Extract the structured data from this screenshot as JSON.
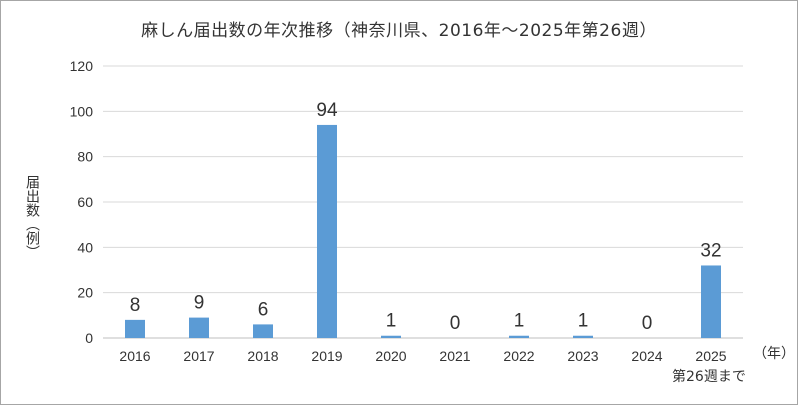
{
  "chart_data": {
    "type": "bar",
    "title": "麻しん届出数の年次推移（神奈川県、2016年～2025年第26週）",
    "ylabel": "届出数（例）",
    "xlabel_unit": "（年）",
    "x_note": "第26週まで",
    "categories": [
      "2016",
      "2017",
      "2018",
      "2019",
      "2020",
      "2021",
      "2022",
      "2023",
      "2024",
      "2025"
    ],
    "values": [
      8,
      9,
      6,
      94,
      1,
      0,
      1,
      1,
      0,
      32
    ],
    "data_labels": [
      "8",
      "9",
      "6",
      "94",
      "1",
      "0",
      "1",
      "1",
      "0",
      "32"
    ],
    "ylim": [
      0,
      120
    ],
    "yticks": [
      "0",
      "20",
      "40",
      "60",
      "80",
      "100",
      "120"
    ],
    "grid": true,
    "bar_color": "#5b9bd5",
    "gridline_color": "#d9d9d9"
  }
}
